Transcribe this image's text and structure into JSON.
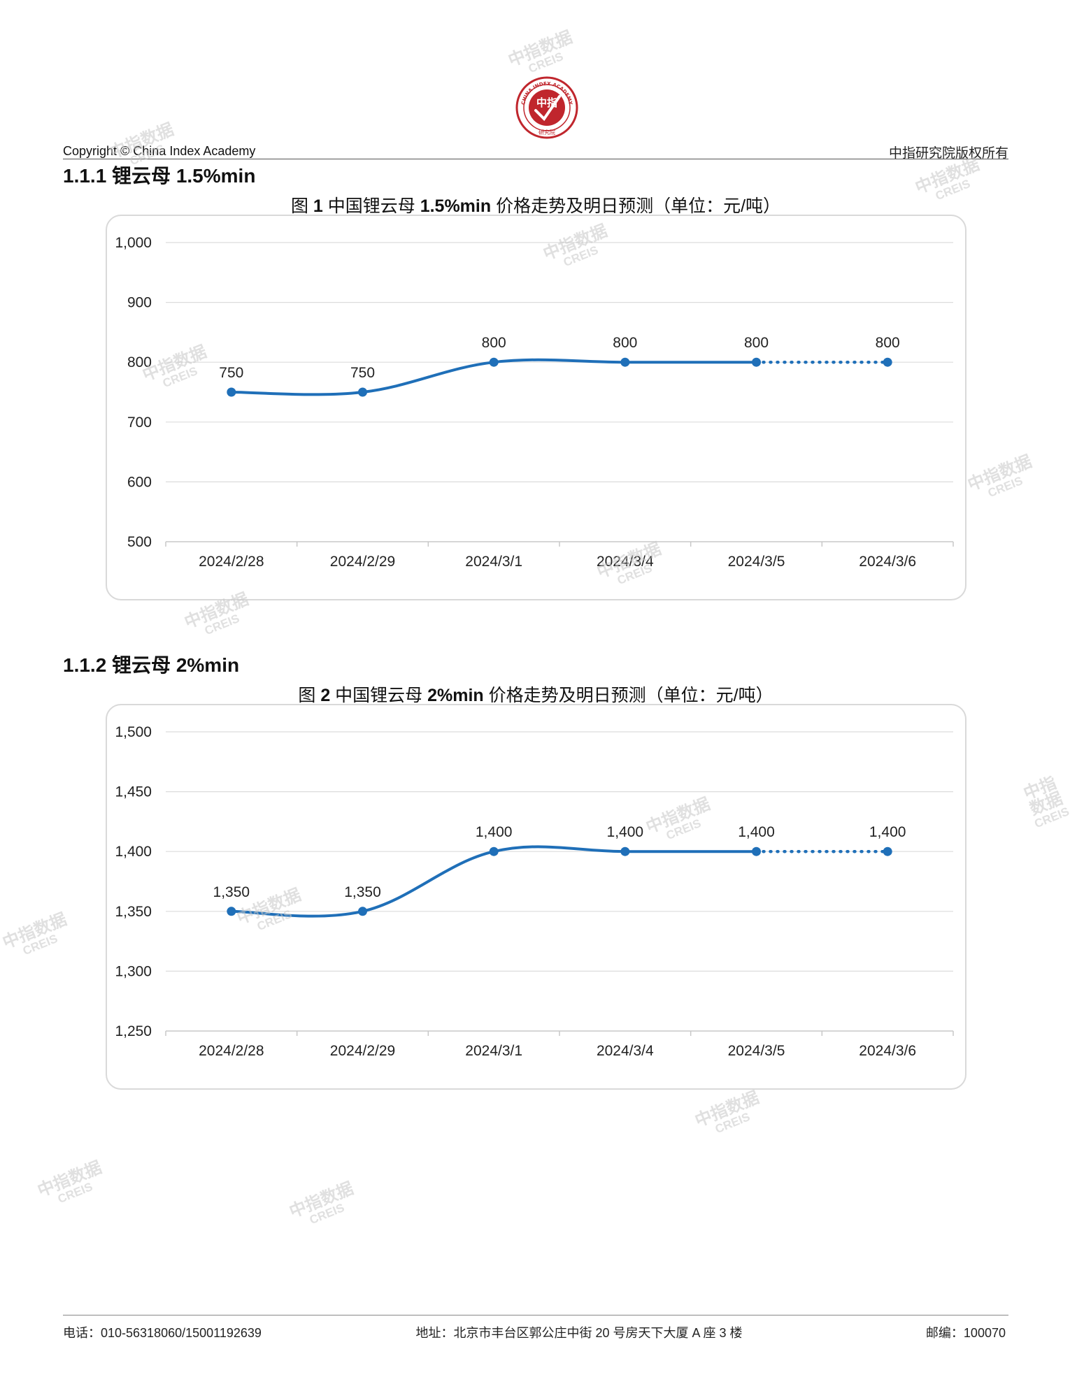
{
  "header": {
    "logo_top": "CHINA INDEX ACADEMY",
    "logo_center": "中指",
    "logo_bottom": "研究院",
    "left": "Copyright © China Index Academy",
    "right": "中指研究院版权所有"
  },
  "watermark": {
    "cn": "中指数据",
    "en": "CREIS"
  },
  "sections": [
    {
      "title": "1.1.1 锂云母 1.5%min",
      "chart_title_prefix": "图 ",
      "chart_title_num": "1",
      "chart_title_mid": " 中国锂云母 ",
      "chart_title_spec": "1.5%min",
      "chart_title_suffix": " 价格走势及明日预测（单位：元/吨）"
    },
    {
      "title": "1.1.2 锂云母 2%min",
      "chart_title_prefix": "图 ",
      "chart_title_num": "2",
      "chart_title_mid": " 中国锂云母 ",
      "chart_title_spec": "2%min",
      "chart_title_suffix": " 价格走势及明日预测（单位：元/吨）"
    }
  ],
  "chart_data": [
    {
      "type": "line",
      "title": "图 1 中国锂云母 1.5%min 价格走势及明日预测（单位：元/吨）",
      "categories": [
        "2024/2/28",
        "2024/2/29",
        "2024/3/1",
        "2024/3/4",
        "2024/3/5",
        "2024/3/6"
      ],
      "values": [
        750,
        750,
        800,
        800,
        800,
        800
      ],
      "labels": [
        "750",
        "750",
        "800",
        "800",
        "800",
        "800"
      ],
      "forecast_from_index": 4,
      "ylim": [
        500,
        1000
      ],
      "yticks": [
        500,
        600,
        700,
        800,
        900,
        1000
      ],
      "ytick_labels": [
        "500",
        "600",
        "700",
        "800",
        "900",
        "1,000"
      ],
      "grid": true,
      "color": "#1f6fb8"
    },
    {
      "type": "line",
      "title": "图 2 中国锂云母 2%min 价格走势及明日预测（单位：元/吨）",
      "categories": [
        "2024/2/28",
        "2024/2/29",
        "2024/3/1",
        "2024/3/4",
        "2024/3/5",
        "2024/3/6"
      ],
      "values": [
        1350,
        1350,
        1400,
        1400,
        1400,
        1400
      ],
      "labels": [
        "1,350",
        "1,350",
        "1,400",
        "1,400",
        "1,400",
        "1,400"
      ],
      "forecast_from_index": 4,
      "ylim": [
        1250,
        1500
      ],
      "yticks": [
        1250,
        1300,
        1350,
        1400,
        1450,
        1500
      ],
      "ytick_labels": [
        "1,250",
        "1,300",
        "1,350",
        "1,400",
        "1,450",
        "1,500"
      ],
      "grid": true,
      "color": "#1f6fb8"
    }
  ],
  "footer": {
    "phone": "电话：010-56318060/15001192639",
    "address": "地址：北京市丰台区郭公庄中街 20 号房天下大厦 A 座 3 楼",
    "postcode": "邮编：100070"
  }
}
